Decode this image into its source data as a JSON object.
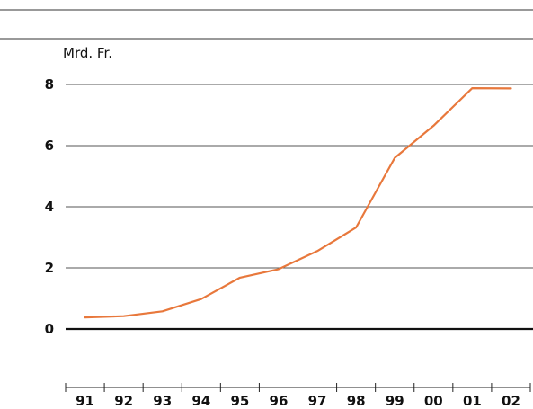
{
  "chart_data": {
    "type": "line",
    "ylabel": "Mrd. Fr.",
    "categories": [
      "91",
      "92",
      "93",
      "94",
      "95",
      "96",
      "97",
      "98",
      "99",
      "00",
      "01",
      "02"
    ],
    "x": [
      1991,
      1992,
      1993,
      1994,
      1995,
      1996,
      1997,
      1998,
      1999,
      2000,
      2001,
      2002
    ],
    "series": [
      {
        "values": [
          0.38,
          0.42,
          0.58,
          0.98,
          1.68,
          1.96,
          2.55,
          3.32,
          5.6,
          6.65,
          7.88,
          7.87
        ],
        "color": "#e8783c"
      }
    ],
    "yticks": [
      "0",
      "2",
      "4",
      "6",
      "8"
    ],
    "ylim": [
      0,
      8
    ],
    "grid": true,
    "legend": "none"
  }
}
